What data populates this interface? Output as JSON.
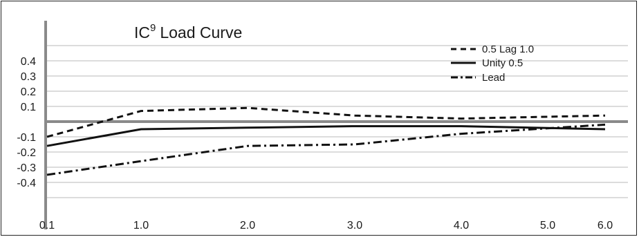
{
  "chart_data": {
    "type": "line",
    "title": "IC",
    "title_superscript": "9",
    "title_suffix": "Load Curve",
    "x": [
      "0.1",
      "1.0",
      "2.0",
      "3.0",
      "4.0",
      "5.0",
      "6.0"
    ],
    "x_positions": [
      0.1,
      1.0,
      2.0,
      3.0,
      4.0,
      5.0,
      5.5
    ],
    "x_tick_labels": [
      "0.1",
      "1.0",
      "2.0",
      "3.0",
      "4.0",
      "5.0",
      "6.0"
    ],
    "y_tick_labels": [
      "0.4",
      "0.3",
      "0.2",
      "0.1",
      "-0.1",
      "-0.2",
      "-0.3",
      "-0.4"
    ],
    "y_tick_values": [
      0.4,
      0.3,
      0.2,
      0.1,
      -0.1,
      -0.2,
      -0.3,
      -0.4
    ],
    "ylim": [
      -0.5,
      0.5
    ],
    "grid": true,
    "legend_position": "top-right",
    "series": [
      {
        "name": "0.5 Lag 1.0",
        "style": "dashed",
        "x": [
          0.1,
          1.0,
          2.0,
          3.0,
          4.0,
          5.5
        ],
        "values": [
          -0.1,
          0.07,
          0.09,
          0.04,
          0.02,
          0.04
        ]
      },
      {
        "name": "Unity 0.5",
        "style": "solid",
        "x": [
          0.1,
          1.0,
          2.0,
          3.0,
          4.0,
          5.5
        ],
        "values": [
          -0.16,
          -0.05,
          -0.04,
          -0.03,
          -0.03,
          -0.05
        ]
      },
      {
        "name": "Lead",
        "style": "dashdot",
        "x": [
          0.1,
          1.0,
          2.0,
          3.0,
          4.0,
          5.5
        ],
        "values": [
          -0.35,
          -0.26,
          -0.16,
          -0.15,
          -0.08,
          -0.02
        ]
      }
    ]
  }
}
